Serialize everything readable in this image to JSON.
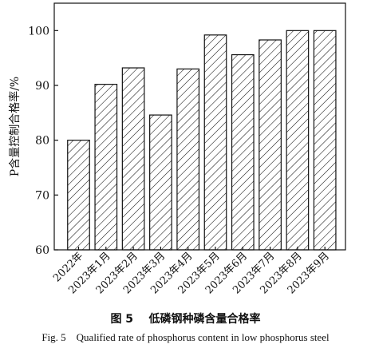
{
  "chart_data": {
    "type": "bar",
    "categories": [
      "2022年",
      "2023年1月",
      "2023年2月",
      "2023年3月",
      "2023年4月",
      "2023年5月",
      "2023年6月",
      "2023年7月",
      "2023年8月",
      "2023年9月"
    ],
    "values": [
      80.0,
      90.2,
      93.2,
      84.6,
      93.0,
      99.2,
      95.6,
      98.3,
      100.0,
      100.0
    ],
    "ylabel": "P含量控制合格率/%",
    "xlabel": "",
    "ylim": [
      60,
      105
    ],
    "yticks": [
      60,
      70,
      80,
      90,
      100
    ],
    "bar_fill": "hatched",
    "grid": false,
    "legend": "none"
  },
  "captions": {
    "cn": "图 5    低磷钢种磷含量合格率",
    "en": "Fig. 5    Qualified rate of phosphorus content in low phosphorus steel"
  },
  "colors": {
    "ink": "#111111",
    "background": "#ffffff"
  }
}
